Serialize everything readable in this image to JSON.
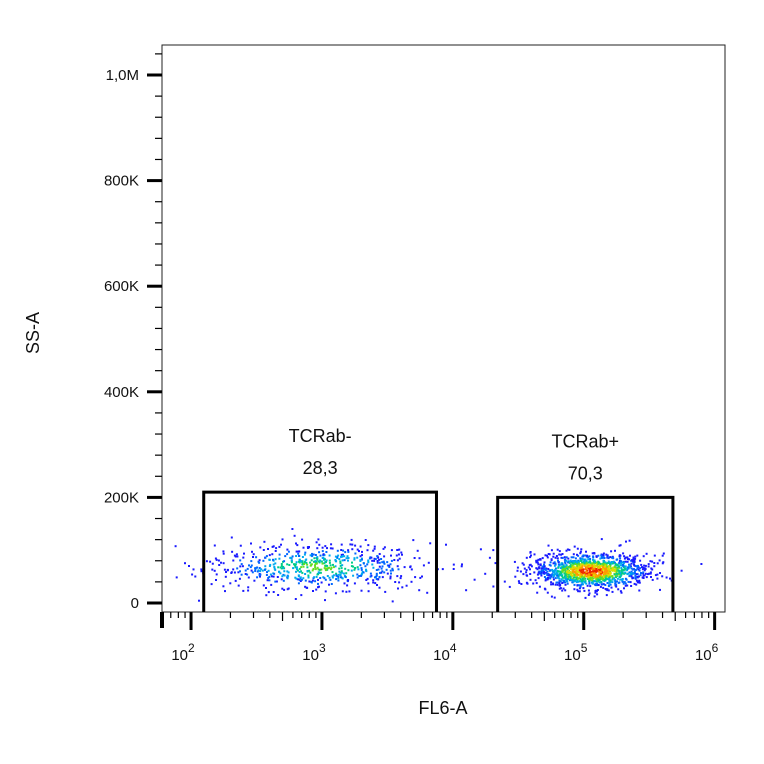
{
  "chart_data": {
    "type": "scatter",
    "xlabel": "FL6-A",
    "ylabel": "SS-A",
    "xscale": "log",
    "xlim": [
      60,
      1200000
    ],
    "ylim": [
      0,
      1000000
    ],
    "y_ticks": [
      {
        "value": 0,
        "label": "0"
      },
      {
        "value": 200000,
        "label": "200K"
      },
      {
        "value": 400000,
        "label": "400K"
      },
      {
        "value": 600000,
        "label": "600K"
      },
      {
        "value": 800000,
        "label": "800K"
      },
      {
        "value": 1000000,
        "label": "1,0M"
      }
    ],
    "x_ticks": [
      {
        "value": 100,
        "base": "10",
        "exp": "2"
      },
      {
        "value": 1000,
        "base": "10",
        "exp": "3"
      },
      {
        "value": 10000,
        "base": "10",
        "exp": "4"
      },
      {
        "value": 100000,
        "base": "10",
        "exp": "5"
      },
      {
        "value": 1000000,
        "base": "10",
        "exp": "6"
      }
    ],
    "gates": [
      {
        "name": "TCRab-",
        "value": "28,3",
        "x_range": [
          125,
          7500
        ],
        "y_range": [
          0,
          210000
        ]
      },
      {
        "name": "TCRab+",
        "value": "70,3",
        "x_range": [
          22000,
          480000
        ],
        "y_range": [
          0,
          200000
        ]
      }
    ],
    "populations": [
      {
        "label": "TCRab-",
        "count": 650,
        "log_x_center": 2.95,
        "log_x_sd": 0.42,
        "y_center": 70000,
        "y_sd": 22000
      },
      {
        "label": "TCRab+",
        "count": 1300,
        "log_x_center": 5.05,
        "log_x_sd": 0.22,
        "y_center": 62000,
        "y_sd": 17000
      }
    ],
    "grid": false,
    "legend": "none"
  }
}
